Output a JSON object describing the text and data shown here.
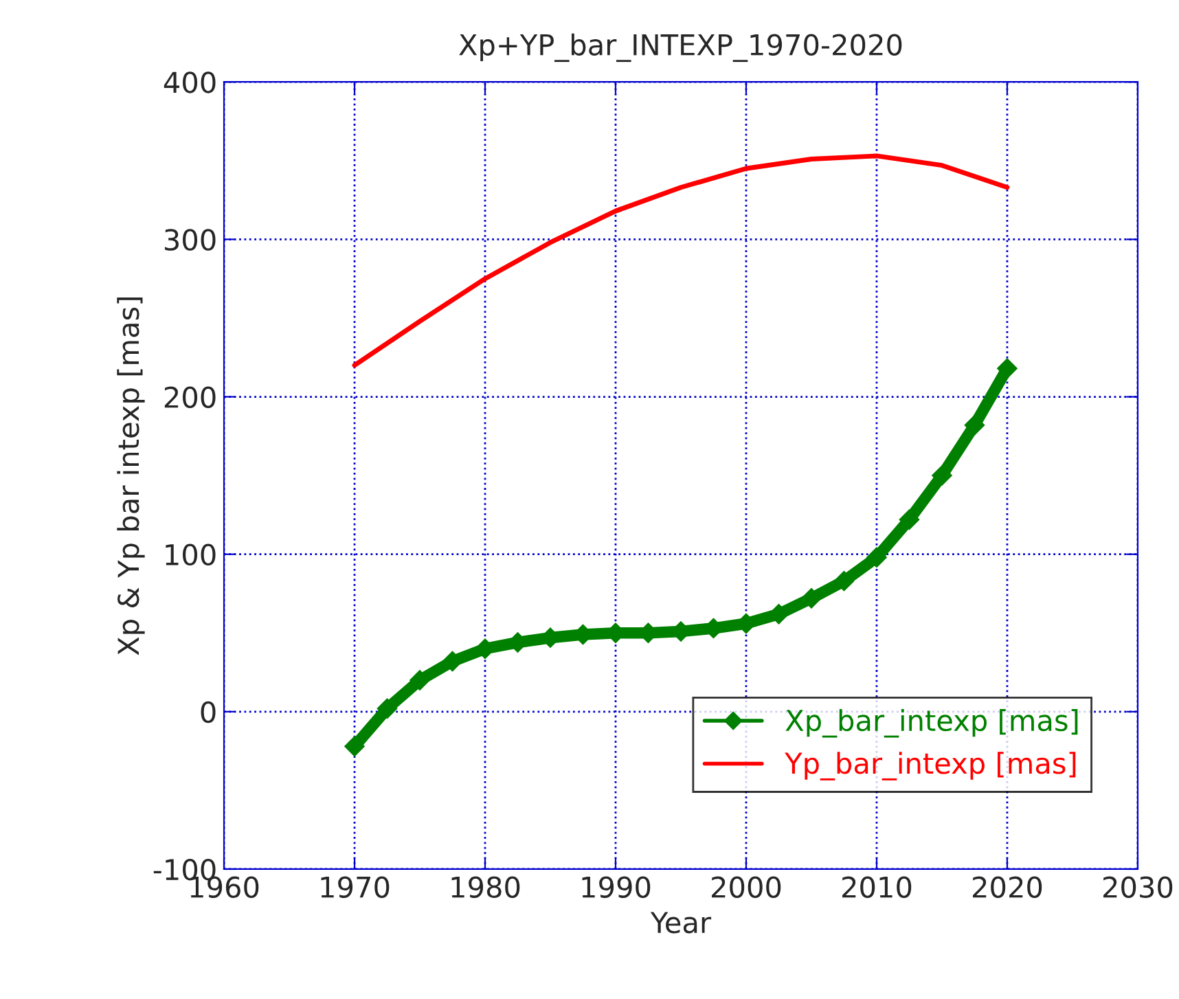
{
  "chart_data": {
    "type": "line",
    "title": "Xp+YP_bar_INTEXP_1970-2020",
    "xlabel": "Year",
    "ylabel": "Xp & Yp bar intexp [mas]",
    "xlim": [
      1960,
      2030
    ],
    "xticks": [
      1960,
      1970,
      1980,
      1990,
      2000,
      2010,
      2020,
      2030
    ],
    "ylim": [
      -100,
      400
    ],
    "yticks": [
      -100,
      0,
      100,
      200,
      300,
      400
    ],
    "grid": true,
    "legend": "bottom right",
    "series": [
      {
        "name": "Xp_bar_intexp [mas]",
        "color": "#008000",
        "marker": "diamond",
        "x": [
          1970,
          1972.5,
          1975,
          1977.5,
          1980,
          1982.5,
          1985,
          1987.5,
          1990,
          1992.5,
          1995,
          1997.5,
          2000,
          2002.5,
          2005,
          2007.5,
          2010,
          2012.5,
          2015,
          2017.5,
          2020
        ],
        "values": [
          -22,
          2,
          20,
          32,
          40,
          44,
          47,
          49,
          50,
          50,
          51,
          53,
          56,
          62,
          72,
          83,
          98,
          122,
          150,
          182,
          218
        ]
      },
      {
        "name": "Yp_bar_intexp [mas]",
        "color": "#ff0000",
        "marker": "none",
        "x": [
          1970,
          1975,
          1980,
          1985,
          1990,
          1995,
          2000,
          2005,
          2010,
          2015,
          2020
        ],
        "values": [
          220,
          248,
          275,
          298,
          318,
          333,
          345,
          351,
          353,
          347,
          333
        ]
      }
    ]
  }
}
